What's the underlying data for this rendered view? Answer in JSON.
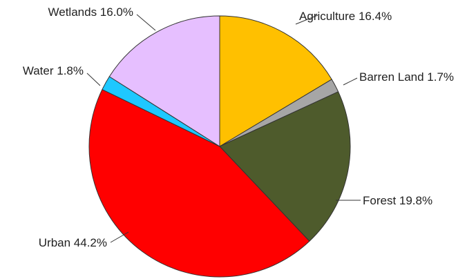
{
  "chart_data": {
    "type": "pie",
    "start_angle_deg": 0,
    "direction": "clockwise",
    "slices": [
      {
        "label": "Agriculture",
        "value": 16.4,
        "display": "Agriculture 16.4%",
        "color": "#FFC000"
      },
      {
        "label": "Barren Land",
        "value": 1.7,
        "display": "Barren Land 1.7%",
        "color": "#A6A6A6"
      },
      {
        "label": "Forest",
        "value": 19.8,
        "display": "Forest 19.8%",
        "color": "#4E5B2C"
      },
      {
        "label": "Urban",
        "value": 44.2,
        "display": "Urban 44.2%",
        "color": "#FF0000"
      },
      {
        "label": "Water",
        "value": 1.8,
        "display": "Water 1.8%",
        "color": "#1EC8FF"
      },
      {
        "label": "Wetlands",
        "value": 16.0,
        "display": "Wetlands 16.0%",
        "color": "#E6BFFF"
      }
    ]
  }
}
